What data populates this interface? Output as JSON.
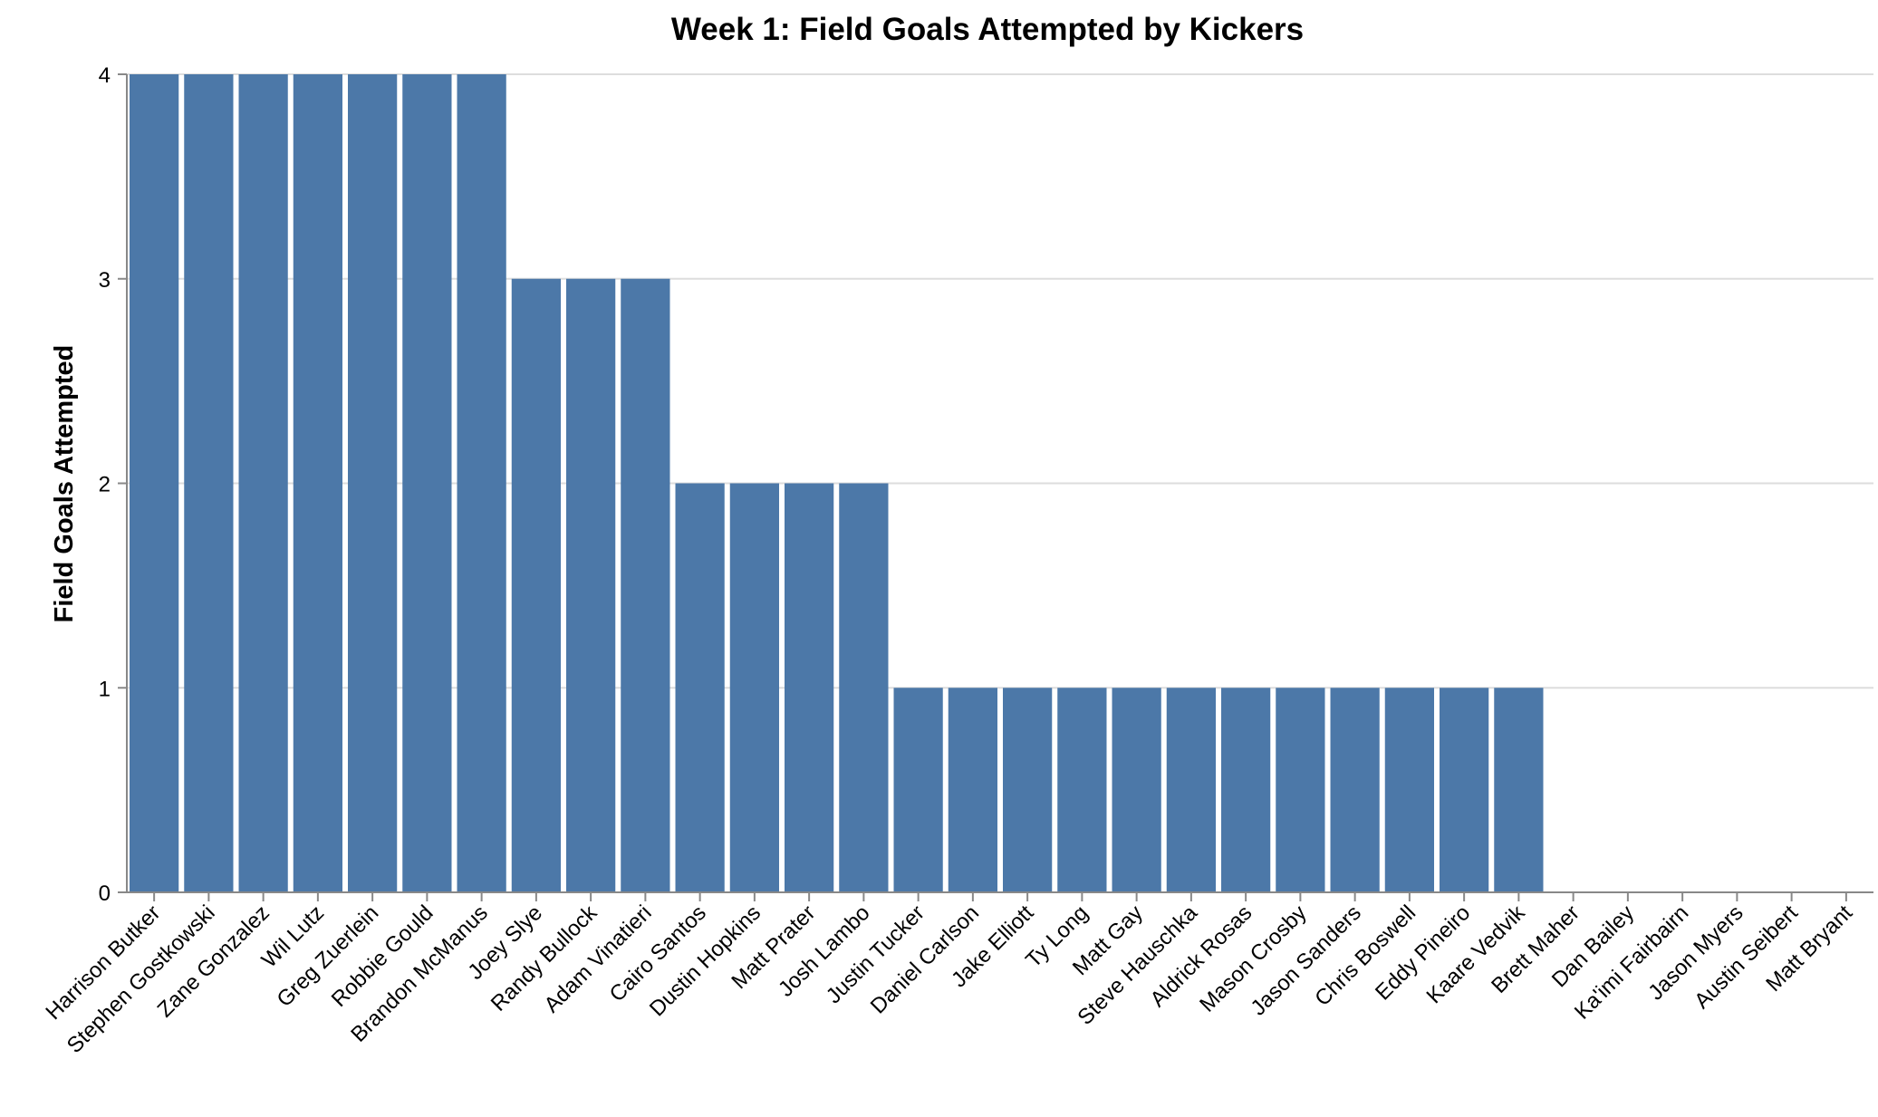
{
  "chart_data": {
    "type": "bar",
    "title": "Week 1: Field Goals Attempted by Kickers",
    "xlabel": "",
    "ylabel": "Field Goals Attempted",
    "ylim": [
      0,
      4
    ],
    "yticks": [
      0,
      1,
      2,
      3,
      4
    ],
    "grid": true,
    "bar_color": "#4c78a8",
    "categories": [
      "Harrison Butker",
      "Stephen Gostkowski",
      "Zane Gonzalez",
      "Wil Lutz",
      "Greg Zuerlein",
      "Robbie Gould",
      "Brandon McManus",
      "Joey Slye",
      "Randy Bullock",
      "Adam Vinatieri",
      "Cairo Santos",
      "Dustin Hopkins",
      "Matt Prater",
      "Josh Lambo",
      "Justin Tucker",
      "Daniel Carlson",
      "Jake Elliott",
      "Ty Long",
      "Matt Gay",
      "Steve Hauschka",
      "Aldrick Rosas",
      "Mason Crosby",
      "Jason Sanders",
      "Chris Boswell",
      "Eddy Pineiro",
      "Kaare Vedvik",
      "Brett Maher",
      "Dan Bailey",
      "Ka'imi Fairbairn",
      "Jason Myers",
      "Austin Seibert",
      "Matt Bryant"
    ],
    "values": [
      4,
      4,
      4,
      4,
      4,
      4,
      4,
      3,
      3,
      3,
      2,
      2,
      2,
      2,
      1,
      1,
      1,
      1,
      1,
      1,
      1,
      1,
      1,
      1,
      1,
      1,
      0,
      0,
      0,
      0,
      0,
      0
    ]
  }
}
